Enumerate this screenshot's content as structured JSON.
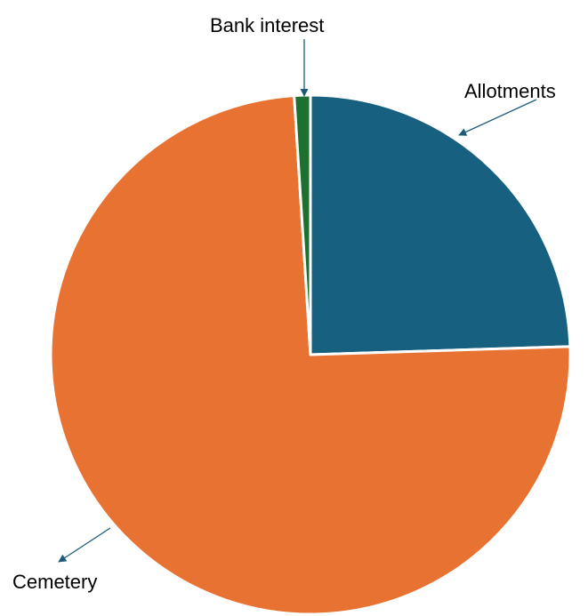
{
  "chart_data": {
    "type": "pie",
    "title": "",
    "categories": [
      "Allotments",
      "Cemetery",
      "Bank interest"
    ],
    "values": [
      24.5,
      74.5,
      1.0
    ],
    "colors": [
      "#17607f",
      "#e87232",
      "#1e7030"
    ],
    "start_angle": "12 o'clock",
    "direction": "clockwise",
    "legend": "none",
    "data_labels": "category names outside with leader arrows"
  }
}
